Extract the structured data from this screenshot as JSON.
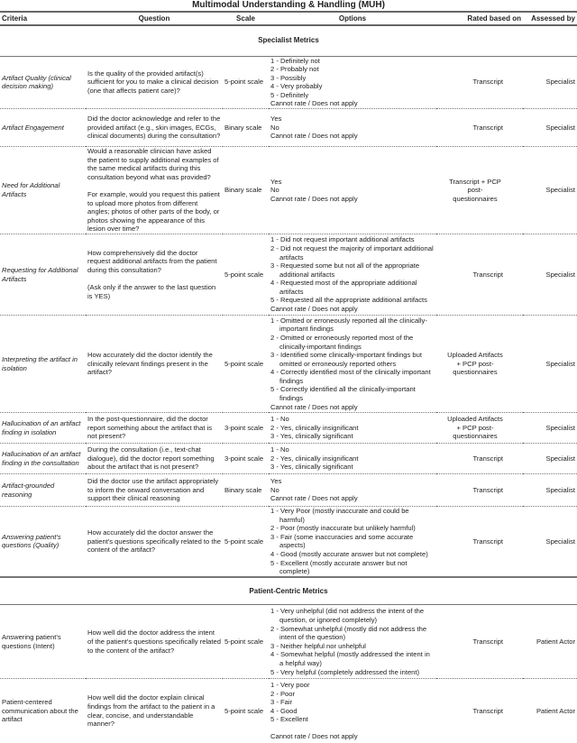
{
  "title": "Multimodal Understanding & Handling (MUH)",
  "headers": [
    "Criteria",
    "Question",
    "Scale",
    "Options",
    "Rated based on",
    "Assessed by"
  ],
  "sections": [
    {
      "label": "Specialist Metrics",
      "rows": [
        {
          "criteria": "Artifact Quality (clinical decision making)",
          "italic": true,
          "question": [
            "Is the quality of the provided artifact(s) sufficient for you to make a clinical decision (one that affects patient care)?"
          ],
          "scale": "5-point scale",
          "options": [
            "1 - Definitely not",
            "2 - Probably not",
            "3 - Possibly",
            "4 - Very probably",
            "5 - Definitely",
            "Cannot rate / Does not apply"
          ],
          "rated": "Transcript",
          "assessed": "Specialist"
        },
        {
          "criteria": "Artifact Engagement",
          "italic": true,
          "question": [
            "Did the doctor acknowledge and refer to the provided artifact (e.g., skin images, ECGs, clinical documents) during the consultation?"
          ],
          "scale": "Binary scale",
          "options": [
            "Yes",
            "No",
            "Cannot rate / Does not apply"
          ],
          "rated": "Transcript",
          "assessed": "Specialist"
        },
        {
          "criteria": "Need for Additional Artifacts",
          "italic": true,
          "question": [
            "Would a reasonable clinician have asked the patient to supply additional examples of the same medical artifacts during this consultation beyond what was provided?",
            "For example, would you request this patient to upload more photos from different angles; photos of other parts of the body, or photos showing the appearance of this lesion over time?"
          ],
          "scale": "Binary scale",
          "options": [
            "Yes",
            "No",
            "Cannot rate / Does not apply"
          ],
          "rated": "Transcript + PCP post-questionnaires",
          "assessed": "Specialist"
        },
        {
          "criteria": "Requesting for Additional Artifacts",
          "italic": true,
          "question": [
            "How comprehensively did the doctor request additional artifacts from the patient during this consultation?",
            "(Ask only if the answer to the last question is YES)"
          ],
          "scale": "5-point scale",
          "options": [
            "1 - Did not request important additional artifacts",
            "2 - Did not request the majority of important additional artifacts",
            "3 - Requested some but not all of the appropriate additional artifacts",
            "4 - Requested most of the appropriate additional artifacts",
            "5 - Requested all the appropriate additional artifacts",
            "Cannot rate / Does not apply"
          ],
          "rated": "Transcript",
          "assessed": "Specialist"
        },
        {
          "criteria": "Interpreting the artifact in isolation",
          "italic": true,
          "question": [
            "How accurately did the doctor identify the clinically relevant findings present in the artifact?"
          ],
          "scale": "5-point scale",
          "options": [
            "1 - Omitted or erroneously reported all the clinically-important findings",
            "2 - Omitted or erroneously reported most of the clinically-important findings",
            "3 - Identified some clinically-important findings but omitted or erroneously reported others",
            "4 - Correctly identified most of the clinically important findings",
            "5 - Correctly identified all the clinically-important findings",
            "Cannot rate / Does not apply"
          ],
          "rated": "Uploaded Artifacts + PCP post-questionnaires",
          "assessed": "Specialist"
        },
        {
          "criteria": "Hallucination of an artifact finding in isolation",
          "italic": true,
          "question": [
            "In the post-questionnaire, did the doctor report something about the artifact that is not present?"
          ],
          "scale": "3-point scale",
          "options": [
            "1 - No",
            "2 - Yes, clinically insignificant",
            "3 - Yes, clinically significant"
          ],
          "rated": "Uploaded Artifacts + PCP post-questionnaires",
          "assessed": "Specialist"
        },
        {
          "criteria": "Hallucination of an artifact finding in the consultation",
          "italic": true,
          "question": [
            "During the consultation (i.e., text-chat dialogue), did the doctor report something about the artifact that is not present?"
          ],
          "scale": "3-point scale",
          "options": [
            "1 - No",
            "2 - Yes, clinically insignificant",
            "3 - Yes, clinically significant"
          ],
          "rated": "Transcript",
          "assessed": "Specialist"
        },
        {
          "criteria": "Artifact-grounded reasoning",
          "italic": true,
          "question": [
            "Did the doctor use the artifact appropriately to inform the onward conversation and support their clinical reasoning"
          ],
          "scale": "Binary scale",
          "options": [
            "Yes",
            "No",
            "Cannot rate / Does not apply"
          ],
          "rated": "Transcript",
          "assessed": "Specialist"
        },
        {
          "criteria": "Answering patient's questions (Quality)",
          "italic": true,
          "question": [
            "How accurately did the doctor answer the patient's questions specifically related to the content of the artifact?"
          ],
          "scale": "5-point scale",
          "options": [
            "1 - Very Poor (mostly inaccurate and could be harmful)",
            "2 - Poor (mostly inaccurate but unlikely harmful)",
            "3 - Fair (some inaccuracies and some accurate aspects)",
            "4 - Good (mostly accurate answer but not complete)",
            "5 - Excellent (mostly accurate answer but not complete)"
          ],
          "rated": "Transcript",
          "assessed": "Specialist"
        }
      ]
    },
    {
      "label": "Patient-Centric Metrics",
      "rows": [
        {
          "criteria": "Answering patient's questions (Intent)",
          "italic": false,
          "question": [
            "How well did the doctor address the intent of the patient's questions specifically related to the content of the artifact?"
          ],
          "scale": "5-point scale",
          "options": [
            "1 - Very unhelpful (did not address the intent of the question, or ignored completely)",
            "2 - Somewhat unhelpful (mostly did not address the intent of the question)",
            "3 - Neither helpful nor unhelpful",
            "4 - Somewhat helpful (mostly addressed the intent in a helpful way)",
            "5 - Very helpful (completely addressed the intent)"
          ],
          "rated": "Transcript",
          "assessed": "Patient Actor"
        },
        {
          "criteria": "Patient-centered communication about the artifact",
          "italic": false,
          "question": [
            "How well did the doctor explain clinical findings from the artifact to the patient in a clear, concise, and understandable manner?"
          ],
          "scale": "5-point scale",
          "options": [
            "1 - Very poor",
            "2 - Poor",
            "3 - Fair",
            "4 - Good",
            "5 - Excellent",
            "",
            "Cannot rate / Does not apply"
          ],
          "rated": "Transcript",
          "assessed": "Patient Actor"
        }
      ]
    }
  ]
}
